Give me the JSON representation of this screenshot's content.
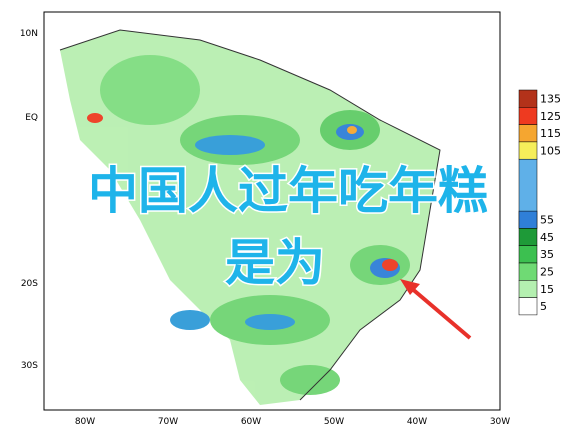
{
  "map": {
    "lat_labels": [
      "10N",
      "EQ",
      "20S",
      "30S"
    ],
    "lon_labels": [
      "80W",
      "70W",
      "60W",
      "50W",
      "40W",
      "30W"
    ],
    "legend": [
      {
        "label": "135",
        "color": "#b3321a"
      },
      {
        "label": "125",
        "color": "#ee3a20"
      },
      {
        "label": "115",
        "color": "#f5a630"
      },
      {
        "label": "105",
        "color": "#f6ee5a"
      },
      {
        "label": "55",
        "color": "#2f7fd8"
      },
      {
        "label": "45",
        "color": "#1e9a38"
      },
      {
        "label": "35",
        "color": "#3cc050"
      },
      {
        "label": "25",
        "color": "#6fda74"
      },
      {
        "label": "15",
        "color": "#b4f0b0"
      },
      {
        "label": "5",
        "color": "#ffffff"
      }
    ]
  },
  "overlay": {
    "line1": "中国人过年吃年糕",
    "line2": "是为"
  }
}
